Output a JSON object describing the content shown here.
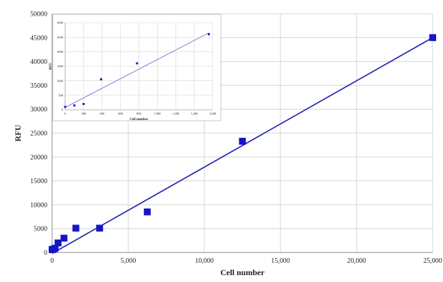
{
  "chart_data": [
    {
      "type": "scatter",
      "title": "",
      "xlabel": "Cell number",
      "ylabel": "RFU",
      "xlim": [
        0,
        25000
      ],
      "ylim": [
        0,
        50000
      ],
      "x_ticks": [
        "0",
        "5,000",
        "10,000",
        "15,000",
        "20,000",
        "25,000"
      ],
      "y_ticks": [
        "0",
        "5000",
        "10000",
        "15000",
        "20000",
        "25000",
        "30000",
        "35000",
        "40000",
        "45000",
        "50000"
      ],
      "grid": true,
      "marker_color": "#1515c8",
      "trend_color": "#2a2ab8",
      "series": [
        {
          "x": [
            0,
            50,
            100,
            200,
            390,
            780,
            1560,
            3120,
            6250,
            12500,
            25000
          ],
          "y": [
            600,
            650,
            700,
            900,
            2000,
            3000,
            5100,
            5100,
            8500,
            23300,
            45000
          ]
        }
      ],
      "trendline": {
        "x": [
          0,
          25000
        ],
        "y": [
          -200,
          45000
        ]
      }
    },
    {
      "type": "scatter",
      "title": "",
      "xlabel": "Cell number",
      "ylabel": "RFU",
      "xlim": [
        0,
        1600
      ],
      "ylim": [
        0,
        3000
      ],
      "x_ticks": [
        "0",
        "200",
        "400",
        "600",
        "800",
        "1,000",
        "1,200",
        "1,400",
        "1,600"
      ],
      "y_ticks": [
        "0",
        "500",
        "1000",
        "1500",
        "2000",
        "2500",
        "3000"
      ],
      "grid": true,
      "marker_color": "#1515c8",
      "trend_color": "#5a5ad0",
      "series": [
        {
          "x": [
            0,
            100,
            200,
            390,
            780,
            1560
          ],
          "y": [
            100,
            150,
            200,
            1050,
            1600,
            2600
          ]
        }
      ],
      "trendline": {
        "x": [
          0,
          1560
        ],
        "y": [
          80,
          2650
        ]
      }
    }
  ]
}
